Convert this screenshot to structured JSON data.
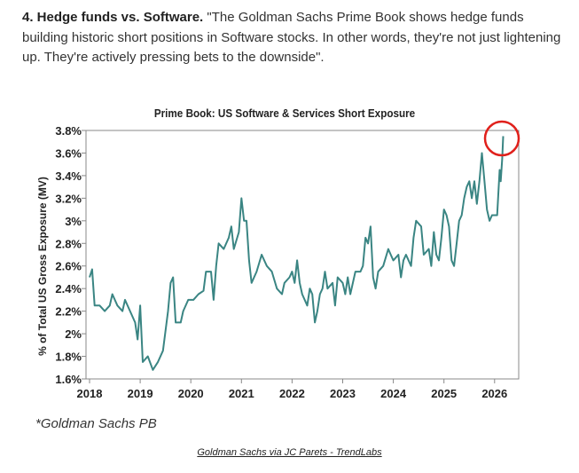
{
  "article": {
    "heading": "4. Hedge funds vs. Software.",
    "body": " \"The Goldman Sachs Prime Book shows hedge funds building historic short positions in Software stocks. In other words, they're not just lightening up. They're actively pressing bets to the downside\"."
  },
  "chart_source_note": "*Goldman Sachs PB",
  "caption_link": "Goldman Sachs via JC Parets - TrendLabs",
  "colors": {
    "line": "#3a8583",
    "highlight_circle": "#e0201b"
  },
  "chart_data": {
    "type": "line",
    "title": "Prime Book: US Software & Services Short Exposure",
    "xlabel": "",
    "ylabel": "% of Total US Gross Exposure (MV)",
    "xlim": [
      2018,
      2026.5
    ],
    "ylim": [
      1.6,
      3.8
    ],
    "x_ticks": [
      "2018",
      "2019",
      "2020",
      "2021",
      "2022",
      "2023",
      "2024",
      "2025",
      "2026"
    ],
    "y_ticks": [
      "1.6%",
      "1.8%",
      "2%",
      "2.2%",
      "2.4%",
      "2.6%",
      "2.8%",
      "3%",
      "3.2%",
      "3.4%",
      "3.6%",
      "3.8%"
    ],
    "grid": false,
    "annotation": "red circle around latest peak",
    "series": [
      {
        "x": [
          2018.0,
          2018.05,
          2018.1,
          2018.2,
          2018.3,
          2018.4,
          2018.45,
          2018.55,
          2018.65,
          2018.7,
          2018.8,
          2018.9,
          2018.95,
          2019.0,
          2019.05,
          2019.15,
          2019.25,
          2019.35,
          2019.45,
          2019.55,
          2019.6,
          2019.65,
          2019.7,
          2019.8,
          2019.85,
          2019.95,
          2020.05,
          2020.15,
          2020.25,
          2020.3,
          2020.4,
          2020.45,
          2020.5,
          2020.55,
          2020.65,
          2020.75,
          2020.8,
          2020.85,
          2020.95,
          2021.0,
          2021.05,
          2021.1,
          2021.15,
          2021.2,
          2021.3,
          2021.4,
          2021.5,
          2021.6,
          2021.7,
          2021.8,
          2021.85,
          2021.95,
          2022.0,
          2022.05,
          2022.1,
          2022.15,
          2022.2,
          2022.3,
          2022.35,
          2022.4,
          2022.45,
          2022.5,
          2022.55,
          2022.6,
          2022.65,
          2022.7,
          2022.8,
          2022.85,
          2022.9,
          2023.0,
          2023.05,
          2023.1,
          2023.15,
          2023.25,
          2023.35,
          2023.4,
          2023.45,
          2023.5,
          2023.55,
          2023.6,
          2023.65,
          2023.7,
          2023.8,
          2023.9,
          2023.95,
          2024.0,
          2024.1,
          2024.15,
          2024.2,
          2024.25,
          2024.35,
          2024.4,
          2024.45,
          2024.55,
          2024.6,
          2024.7,
          2024.75,
          2024.8,
          2024.85,
          2024.9,
          2024.95,
          2025.0,
          2025.05,
          2025.1,
          2025.15,
          2025.2,
          2025.25,
          2025.3,
          2025.35,
          2025.4,
          2025.45,
          2025.5,
          2025.55,
          2025.6,
          2025.65,
          2025.7,
          2025.75,
          2025.8,
          2025.85,
          2025.9,
          2025.95,
          2026.05,
          2026.1,
          2026.12,
          2026.15,
          2026.17
        ],
        "y": [
          2.5,
          2.57,
          2.25,
          2.25,
          2.2,
          2.25,
          2.35,
          2.25,
          2.2,
          2.3,
          2.2,
          2.1,
          1.95,
          2.25,
          1.75,
          1.8,
          1.68,
          1.75,
          1.85,
          2.2,
          2.45,
          2.5,
          2.1,
          2.1,
          2.2,
          2.3,
          2.3,
          2.35,
          2.38,
          2.55,
          2.55,
          2.3,
          2.6,
          2.8,
          2.75,
          2.85,
          2.95,
          2.75,
          2.9,
          3.2,
          3.0,
          3.0,
          2.65,
          2.45,
          2.55,
          2.7,
          2.6,
          2.55,
          2.4,
          2.35,
          2.45,
          2.5,
          2.55,
          2.45,
          2.65,
          2.45,
          2.35,
          2.25,
          2.4,
          2.35,
          2.1,
          2.2,
          2.35,
          2.4,
          2.55,
          2.4,
          2.45,
          2.25,
          2.5,
          2.45,
          2.35,
          2.5,
          2.35,
          2.55,
          2.55,
          2.6,
          2.85,
          2.8,
          2.95,
          2.5,
          2.4,
          2.55,
          2.6,
          2.75,
          2.7,
          2.65,
          2.7,
          2.5,
          2.65,
          2.7,
          2.6,
          2.85,
          3.0,
          2.95,
          2.7,
          2.75,
          2.6,
          2.9,
          2.7,
          2.65,
          2.85,
          3.1,
          3.05,
          2.95,
          2.65,
          2.6,
          2.8,
          3.0,
          3.05,
          3.2,
          3.3,
          3.35,
          3.2,
          3.35,
          3.15,
          3.35,
          3.6,
          3.35,
          3.1,
          3.0,
          3.05,
          3.05,
          3.45,
          3.35,
          3.55,
          3.75
        ]
      }
    ]
  }
}
